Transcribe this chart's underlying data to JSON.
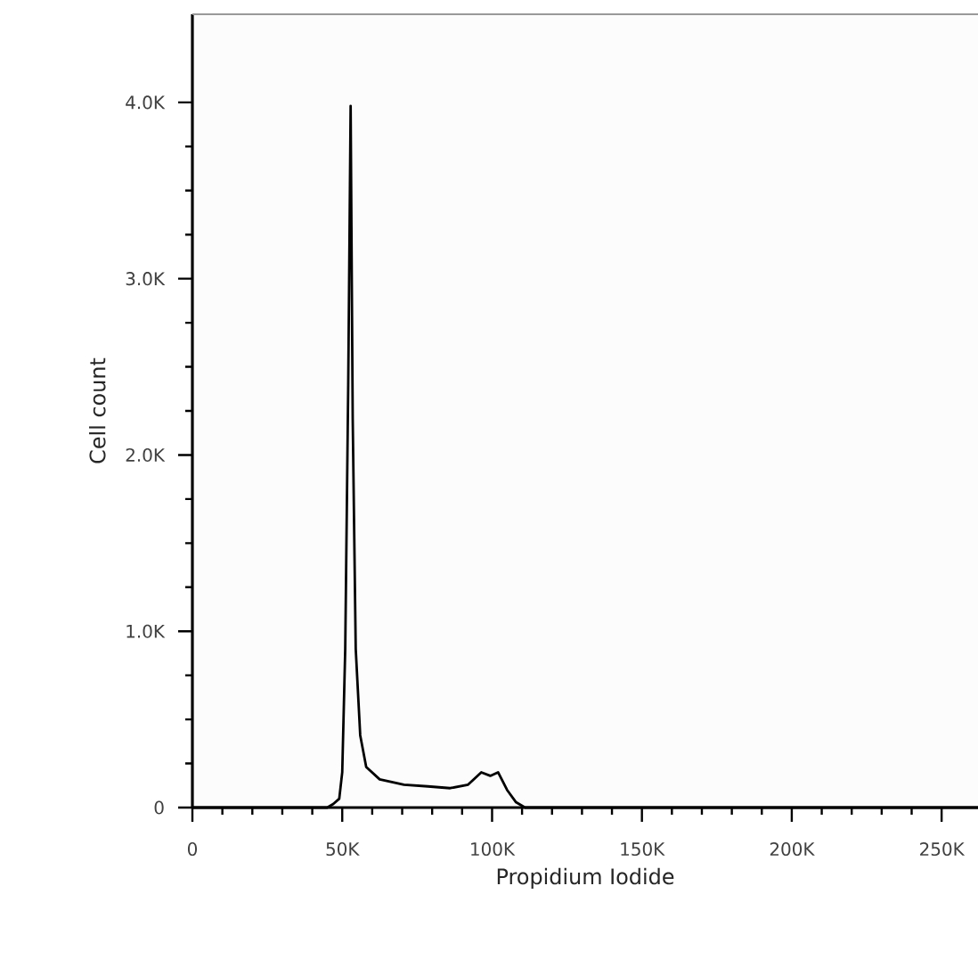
{
  "chart_data": {
    "type": "line",
    "xlabel": "Propidium Iodide",
    "ylabel": "Cell count",
    "color": "#000000",
    "marker": "none",
    "line_style": "solid",
    "x": [
      0,
      45000,
      47000,
      49000,
      50000,
      51000,
      52000,
      52800,
      53500,
      54500,
      56000,
      58000,
      62500,
      70600,
      78600,
      86000,
      92000,
      96400,
      99400,
      102000,
      105000,
      108000,
      111000,
      150000,
      262144
    ],
    "values": [
      0,
      0,
      20,
      50,
      200,
      900,
      2400,
      3980,
      2200,
      900,
      410,
      230,
      160,
      130,
      120,
      110,
      130,
      200,
      180,
      200,
      100,
      30,
      0,
      0,
      0
    ],
    "xlim": [
      0,
      262144
    ],
    "ylim": [
      0,
      4500
    ],
    "xticks": [
      0,
      {
        "value": 50000,
        "label": "50K"
      },
      {
        "value": 100000,
        "label": "100K"
      },
      {
        "value": 150000,
        "label": "150K"
      },
      {
        "value": 200000,
        "label": "200K"
      },
      {
        "value": 250000,
        "label": "250K"
      }
    ],
    "yticks": [
      0,
      {
        "value": 1000,
        "label": "1.0K"
      },
      {
        "value": 2000,
        "label": "2.0K"
      },
      {
        "value": 3000,
        "label": "3.0K"
      },
      {
        "value": 4000,
        "label": "4.0K"
      }
    ]
  }
}
